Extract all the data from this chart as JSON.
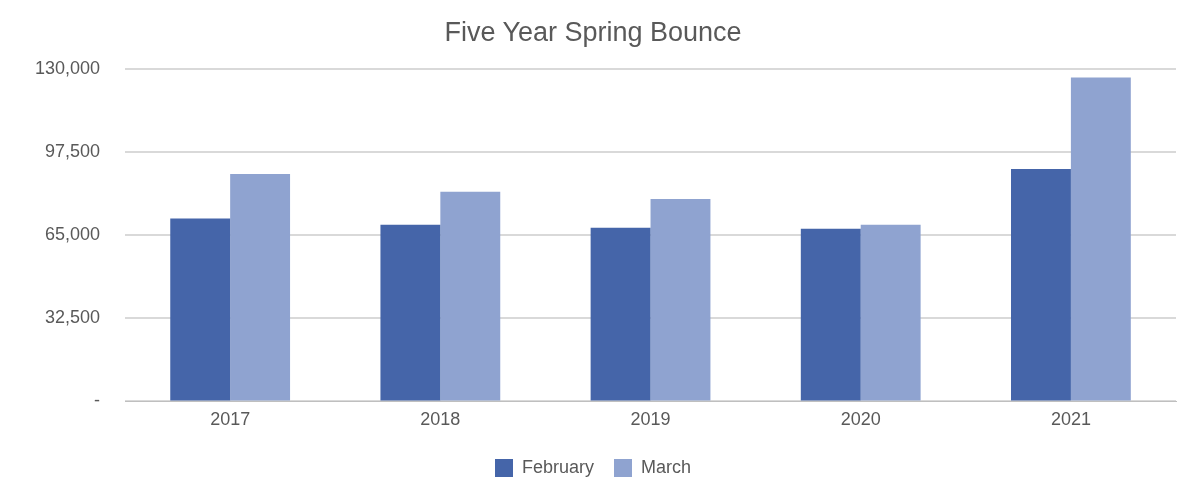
{
  "chart_data": {
    "type": "bar",
    "title": "Five Year Spring Bounce",
    "categories": [
      "2017",
      "2018",
      "2019",
      "2020",
      "2021"
    ],
    "series": [
      {
        "name": "February",
        "color": "#4565a9",
        "values": [
          71600,
          69200,
          68000,
          67600,
          91000
        ]
      },
      {
        "name": "March",
        "color": "#8fa3d0",
        "values": [
          89000,
          82100,
          79300,
          69200,
          126800
        ]
      }
    ],
    "ylim": [
      0,
      130000
    ],
    "yticks": [
      {
        "value": 0,
        "label": "-"
      },
      {
        "value": 32500,
        "label": "32,500"
      },
      {
        "value": 65000,
        "label": "65,000"
      },
      {
        "value": 97500,
        "label": "97,500"
      },
      {
        "value": 130000,
        "label": "130,000"
      }
    ],
    "grid": "y",
    "legend": "bottom"
  }
}
